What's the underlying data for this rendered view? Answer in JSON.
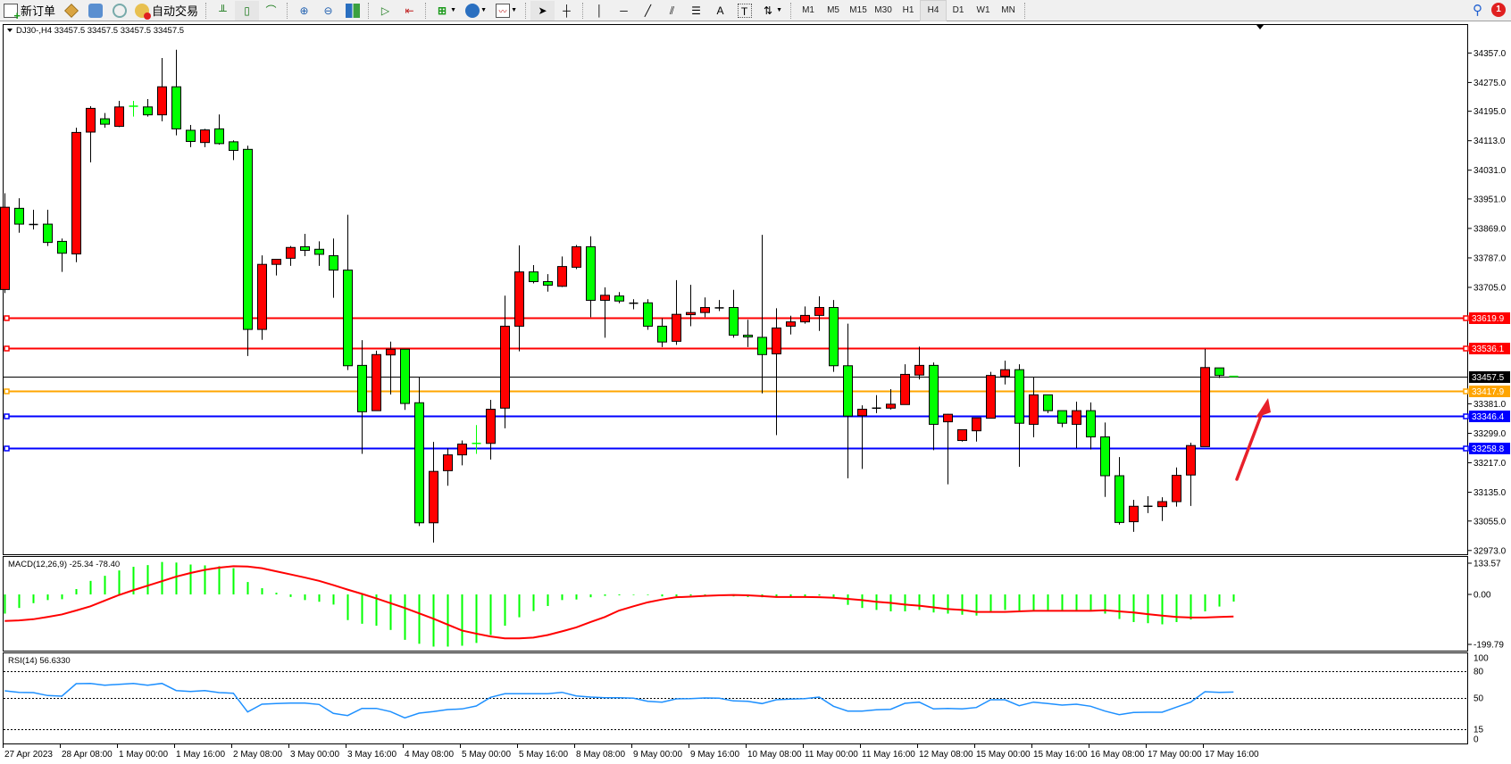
{
  "window": {
    "header_text": "DJ30-,H4  33457.5 33457.5 33457.5 33457.5"
  },
  "toolbar": {
    "new_order_label": "新订单",
    "auto_trading_label": "自动交易",
    "icons": [
      "new-order-icon",
      "history-center-icon",
      "market-watch-icon",
      "signals-icon",
      "auto-trading-icon",
      "bar-chart-icon",
      "candlestick-icon",
      "line-chart-icon",
      "zoom-in-icon",
      "zoom-out-icon",
      "tile-windows-icon",
      "auto-scroll-icon",
      "chart-shift-icon",
      "indicators-icon",
      "periods-icon",
      "templates-icon",
      "cursor-icon",
      "crosshair-icon",
      "vertical-line-icon",
      "horizontal-line-icon",
      "trendline-icon",
      "equidistant-channel-icon",
      "fibonacci-icon",
      "text-icon",
      "text-label-icon",
      "arrows-icon"
    ],
    "timeframes": [
      "M1",
      "M5",
      "M15",
      "M30",
      "H1",
      "H4",
      "D1",
      "W1",
      "MN"
    ],
    "active_timeframe": "H4",
    "notification_count": "1"
  },
  "chart_data": {
    "type": "candlestick",
    "symbol": "DJ30-",
    "timeframe": "H4",
    "title": "DJ30-,H4  33457.5 33457.5 33457.5 33457.5",
    "colors": {
      "bull": "#ff0000",
      "bear": "#00ff00",
      "wick": "#000000",
      "background": "#ffffff"
    },
    "ylim": [
      32940,
      34420
    ],
    "y_tick_labels": [
      "34357.0",
      "34275.0",
      "34195.0",
      "34113.0",
      "34031.0",
      "33951.0",
      "33869.0",
      "33787.0",
      "33705.0",
      "33381.0",
      "33299.0",
      "33217.0",
      "33135.0",
      "33055.0",
      "32973.0"
    ],
    "x_labels": [
      "27 Apr 2023",
      "28 Apr 08:00",
      "1 May 00:00",
      "1 May 16:00",
      "2 May 08:00",
      "3 May 00:00",
      "3 May 16:00",
      "4 May 08:00",
      "5 May 00:00",
      "5 May 16:00",
      "8 May 08:00",
      "9 May 00:00",
      "9 May 16:00",
      "10 May 08:00",
      "11 May 00:00",
      "11 May 16:00",
      "12 May 08:00",
      "15 May 00:00",
      "15 May 16:00",
      "16 May 08:00",
      "17 May 00:00",
      "17 May 16:00"
    ],
    "x_label_every_n_bars": 4,
    "candles_ohlc": [
      [
        33699,
        33967,
        33689,
        33928
      ],
      [
        33925,
        33953,
        33857,
        33881
      ],
      [
        33880,
        33921,
        33866,
        33880
      ],
      [
        33881,
        33921,
        33820,
        33830
      ],
      [
        33833,
        33841,
        33748,
        33800
      ],
      [
        33798,
        34149,
        33775,
        34136
      ],
      [
        34137,
        34209,
        34053,
        34203
      ],
      [
        34174,
        34190,
        34149,
        34159
      ],
      [
        34153,
        34224,
        34151,
        34207
      ],
      [
        34209,
        34224,
        34180,
        34209
      ],
      [
        34207,
        34229,
        34180,
        34185
      ],
      [
        34185,
        34343,
        34167,
        34263
      ],
      [
        34263,
        34366,
        34128,
        34146
      ],
      [
        34142,
        34157,
        34095,
        34111
      ],
      [
        34108,
        34146,
        34095,
        34143
      ],
      [
        34146,
        34186,
        34102,
        34105
      ],
      [
        34110,
        34114,
        34059,
        34086
      ],
      [
        34089,
        34099,
        33514,
        33588
      ],
      [
        33588,
        33794,
        33559,
        33769
      ],
      [
        33769,
        33783,
        33738,
        33783
      ],
      [
        33786,
        33820,
        33765,
        33816
      ],
      [
        33818,
        33854,
        33792,
        33808
      ],
      [
        33811,
        33833,
        33765,
        33797
      ],
      [
        33793,
        33841,
        33676,
        33753
      ],
      [
        33753,
        33907,
        33475,
        33487
      ],
      [
        33488,
        33558,
        33242,
        33359
      ],
      [
        33362,
        33529,
        33362,
        33518
      ],
      [
        33517,
        33554,
        33407,
        33533
      ],
      [
        33533,
        33533,
        33364,
        33382
      ],
      [
        33384,
        33455,
        33041,
        33050
      ],
      [
        33050,
        33275,
        32995,
        33193
      ],
      [
        33195,
        33257,
        33153,
        33239
      ],
      [
        33239,
        33279,
        33210,
        33269
      ],
      [
        33271,
        33322,
        33242,
        33271
      ],
      [
        33271,
        33392,
        33226,
        33366
      ],
      [
        33369,
        33682,
        33313,
        33597
      ],
      [
        33597,
        33822,
        33527,
        33748
      ],
      [
        33748,
        33767,
        33716,
        33721
      ],
      [
        33721,
        33742,
        33693,
        33711
      ],
      [
        33708,
        33791,
        33706,
        33763
      ],
      [
        33761,
        33823,
        33756,
        33818
      ],
      [
        33818,
        33847,
        33622,
        33669
      ],
      [
        33669,
        33705,
        33565,
        33683
      ],
      [
        33681,
        33692,
        33661,
        33667
      ],
      [
        33661,
        33672,
        33644,
        33661
      ],
      [
        33662,
        33672,
        33587,
        33597
      ],
      [
        33597,
        33619,
        33539,
        33553
      ],
      [
        33555,
        33725,
        33545,
        33630
      ],
      [
        33629,
        33712,
        33597,
        33635
      ],
      [
        33635,
        33677,
        33622,
        33649
      ],
      [
        33648,
        33670,
        33639,
        33648
      ],
      [
        33649,
        33698,
        33565,
        33572
      ],
      [
        33572,
        33615,
        33539,
        33567
      ],
      [
        33566,
        33851,
        33410,
        33518
      ],
      [
        33520,
        33647,
        33294,
        33592
      ],
      [
        33597,
        33626,
        33574,
        33609
      ],
      [
        33609,
        33652,
        33604,
        33627
      ],
      [
        33627,
        33680,
        33584,
        33649
      ],
      [
        33649,
        33670,
        33470,
        33487
      ],
      [
        33487,
        33604,
        33174,
        33347
      ],
      [
        33348,
        33377,
        33200,
        33366
      ],
      [
        33369,
        33405,
        33355,
        33369
      ],
      [
        33369,
        33422,
        33365,
        33380
      ],
      [
        33379,
        33491,
        33379,
        33463
      ],
      [
        33461,
        33540,
        33449,
        33488
      ],
      [
        33488,
        33496,
        33252,
        33324
      ],
      [
        33331,
        33353,
        33157,
        33352
      ],
      [
        33279,
        33309,
        33276,
        33309
      ],
      [
        33306,
        33342,
        33276,
        33342
      ],
      [
        33341,
        33470,
        33341,
        33460
      ],
      [
        33458,
        33501,
        33435,
        33476
      ],
      [
        33476,
        33491,
        33206,
        33327
      ],
      [
        33324,
        33455,
        33288,
        33406
      ],
      [
        33406,
        33406,
        33355,
        33362
      ],
      [
        33362,
        33362,
        33316,
        33327
      ],
      [
        33324,
        33387,
        33258,
        33362
      ],
      [
        33362,
        33385,
        33254,
        33289
      ],
      [
        33289,
        33329,
        33122,
        33181
      ],
      [
        33181,
        33233,
        33045,
        33051
      ],
      [
        33053,
        33114,
        33025,
        33096
      ],
      [
        33096,
        33124,
        33077,
        33096
      ],
      [
        33095,
        33121,
        33055,
        33109
      ],
      [
        33109,
        33204,
        33095,
        33182
      ],
      [
        33183,
        33273,
        33097,
        33265
      ],
      [
        33262,
        33534,
        33262,
        33482
      ],
      [
        33481,
        33481,
        33453,
        33460
      ],
      [
        33457.5,
        33457.5,
        33457.5,
        33457.5
      ]
    ],
    "horizontal_levels": [
      {
        "price": "33619.9",
        "color": "#ff0000",
        "kind": "level"
      },
      {
        "price": "33536.1",
        "color": "#ff0000",
        "kind": "level"
      },
      {
        "price": "33457.5",
        "color": "#000000",
        "kind": "bid"
      },
      {
        "price": "33417.9",
        "color": "#ffa500",
        "kind": "level"
      },
      {
        "price": "33346.4",
        "color": "#0000ff",
        "kind": "level"
      },
      {
        "price": "33258.8",
        "color": "#0000ff",
        "kind": "level"
      }
    ],
    "annotation": {
      "type": "arrow",
      "color": "#e8202a",
      "direction": "up"
    },
    "macd": {
      "label": "MACD(12,26,9) -25.34 -78.40",
      "main": -25.34,
      "signal": -78.4,
      "histogram_color": "#00ff00",
      "signal_color": "#ff0000",
      "axis_labels": [
        "133.57",
        "0.00",
        "-199.79"
      ],
      "histogram": [
        -68,
        -48,
        -31,
        -20,
        -17,
        19,
        48,
        66,
        85,
        98,
        104,
        115,
        113,
        106,
        103,
        100,
        93,
        44,
        22,
        6,
        -9,
        -20,
        -26,
        -36,
        -91,
        -104,
        -111,
        -126,
        -161,
        -175,
        -185,
        -185,
        -182,
        -172,
        -144,
        -111,
        -81,
        -59,
        -41,
        -20,
        -18,
        -10,
        -5,
        -3,
        -2,
        -2,
        -7,
        -7,
        -4,
        -4,
        -4,
        -7,
        -9,
        -10,
        -9,
        -9,
        -9,
        -4,
        -9,
        -37,
        -48,
        -55,
        -60,
        -60,
        -55,
        -64,
        -68,
        -72,
        -75,
        -60,
        -55,
        -60,
        -60,
        -60,
        -60,
        -60,
        -60,
        -68,
        -87,
        -98,
        -102,
        -106,
        -98,
        -89,
        -60,
        -43,
        -25.34
      ],
      "signal_line": [
        -94,
        -92,
        -88,
        -80,
        -71,
        -57,
        -42,
        -22,
        -2,
        15,
        31,
        47,
        63,
        76,
        87,
        95,
        100,
        99,
        93,
        82,
        71,
        60,
        48,
        33,
        17,
        2,
        -14,
        -31,
        -48,
        -67,
        -86,
        -107,
        -128,
        -139,
        -149,
        -156,
        -156,
        -153,
        -144,
        -131,
        -117,
        -98,
        -80,
        -57,
        -42,
        -28,
        -18,
        -10,
        -8,
        -5,
        -3,
        -2,
        -3,
        -6,
        -9,
        -9,
        -9,
        -10,
        -12,
        -16,
        -20,
        -26,
        -30,
        -36,
        -40,
        -46,
        -52,
        -55,
        -62,
        -62,
        -62,
        -60,
        -58,
        -58,
        -58,
        -58,
        -58,
        -56,
        -60,
        -64,
        -70,
        -75,
        -80,
        -82,
        -82,
        -80,
        -78.4
      ]
    },
    "rsi": {
      "label": "RSI(14) 56.6330",
      "value": 56.633,
      "color": "#1e90ff",
      "levels": [
        80,
        50,
        15
      ],
      "axis_labels": [
        "100",
        "80",
        "50",
        "15",
        "0"
      ],
      "values": [
        58,
        56.3,
        56,
        52.7,
        52,
        66,
        66.3,
        64.3,
        65.3,
        66.3,
        64.3,
        66.3,
        58.3,
        57.3,
        58.3,
        56,
        55.3,
        34.3,
        43,
        43.7,
        44.3,
        44.3,
        42.7,
        32.7,
        30.3,
        38.3,
        38.3,
        34.7,
        27.7,
        33,
        34.7,
        37,
        37.7,
        41,
        50.7,
        54.7,
        54.7,
        54.7,
        54.7,
        56.3,
        52.3,
        51,
        50.3,
        50.3,
        49.7,
        46.3,
        45.3,
        49,
        49.3,
        50,
        49.7,
        46.7,
        46.3,
        43.7,
        48,
        48.7,
        49.3,
        51,
        40.7,
        35.3,
        35.3,
        36.7,
        37.3,
        44,
        45.3,
        37.7,
        38.3,
        37.7,
        39.3,
        48,
        48,
        41.3,
        45.3,
        43.7,
        42,
        43,
        40.7,
        35.3,
        31.3,
        33.7,
        34,
        34,
        39.7,
        45.3,
        57,
        56.3,
        56.633
      ]
    }
  }
}
